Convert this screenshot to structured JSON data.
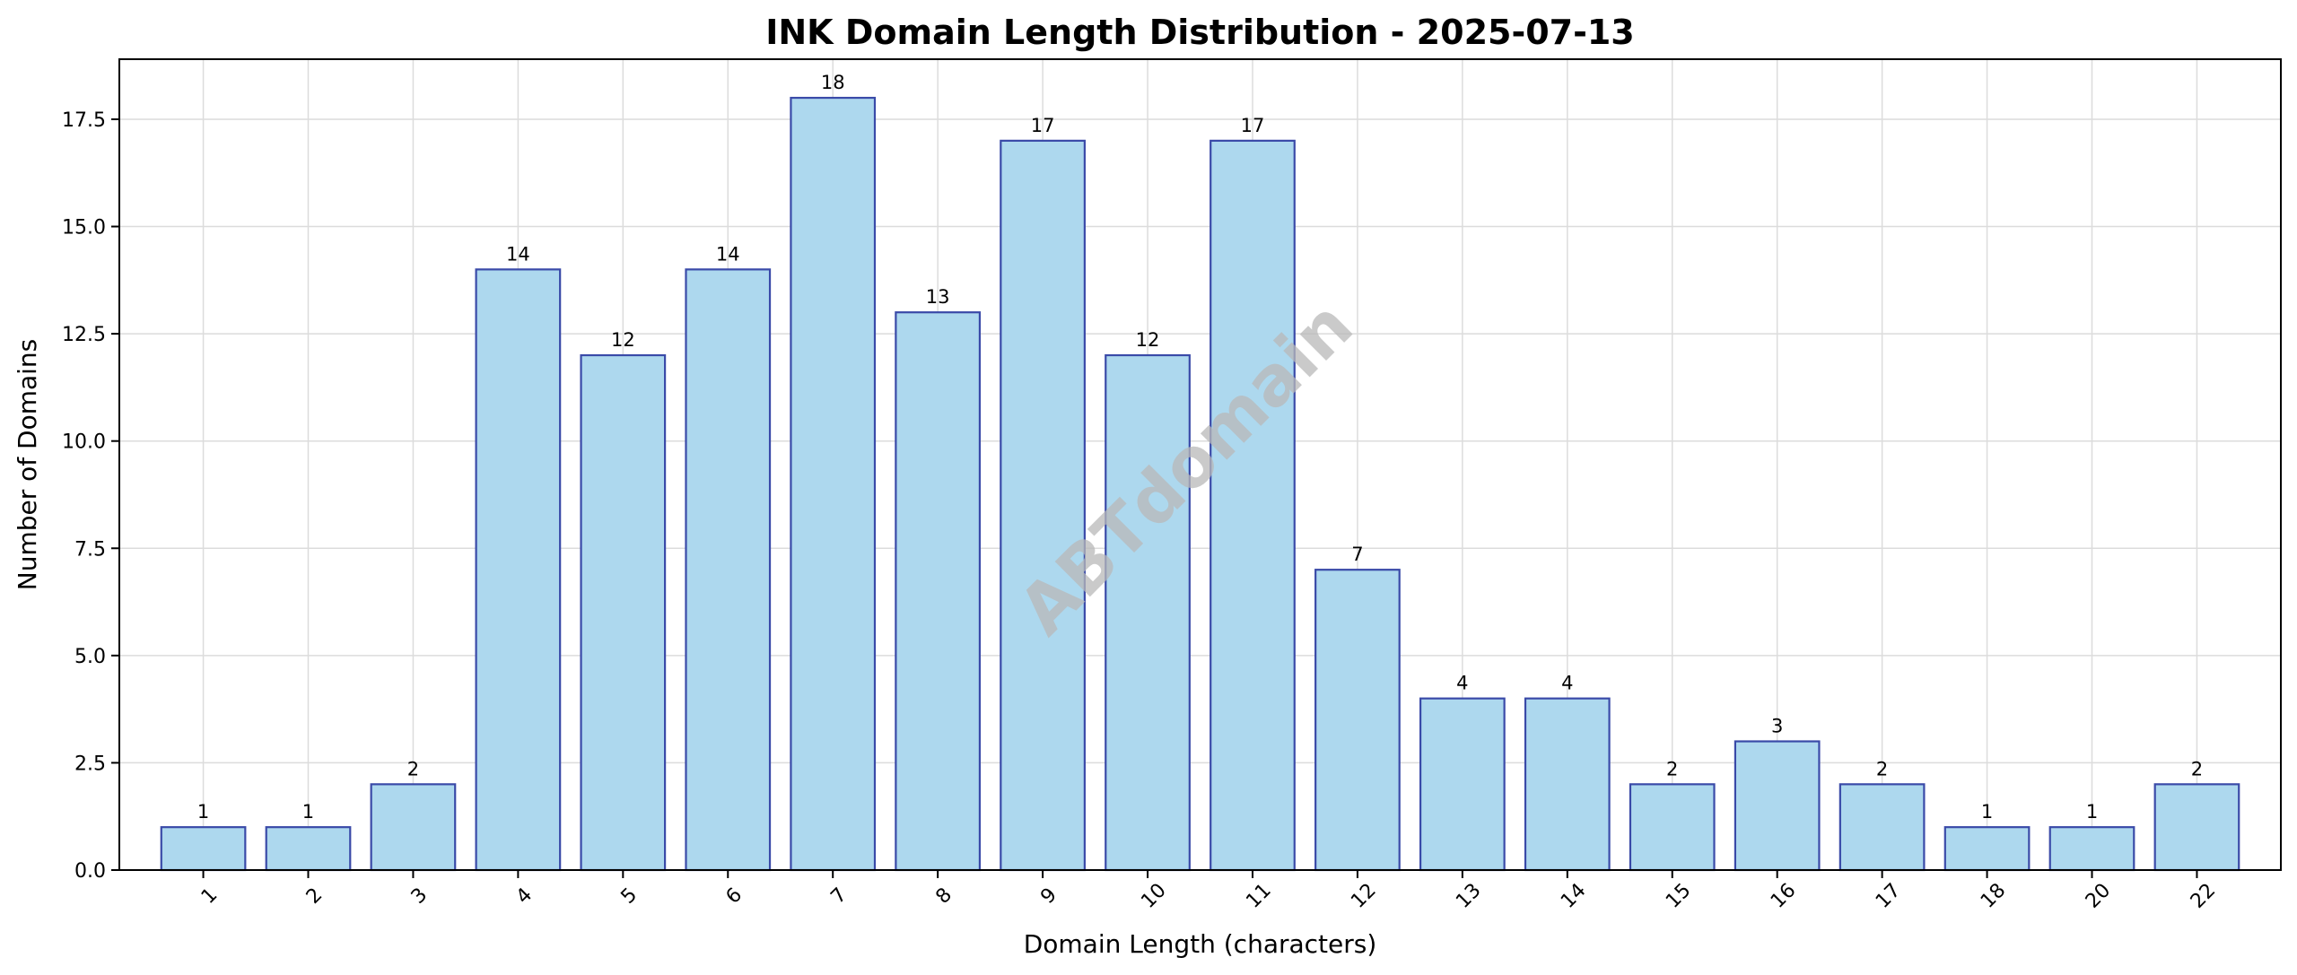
{
  "chart_data": {
    "type": "bar",
    "title": "INK Domain Length Distribution - 2025-07-13",
    "xlabel": "Domain Length (characters)",
    "ylabel": "Number of Domains",
    "categories": [
      "1",
      "2",
      "3",
      "4",
      "5",
      "6",
      "7",
      "8",
      "9",
      "10",
      "11",
      "12",
      "13",
      "14",
      "15",
      "16",
      "17",
      "18",
      "20",
      "22"
    ],
    "values": [
      1,
      1,
      2,
      14,
      12,
      14,
      18,
      13,
      17,
      12,
      17,
      7,
      4,
      4,
      2,
      3,
      2,
      1,
      1,
      2
    ],
    "ylim": [
      0,
      18.9
    ],
    "yticks": [
      "0.0",
      "2.5",
      "5.0",
      "7.5",
      "10.0",
      "12.5",
      "15.0",
      "17.5"
    ],
    "grid": true,
    "bar_color": "#add8ee",
    "bar_edge_color": "#3a4aa8",
    "watermark": "ABTdomain"
  }
}
